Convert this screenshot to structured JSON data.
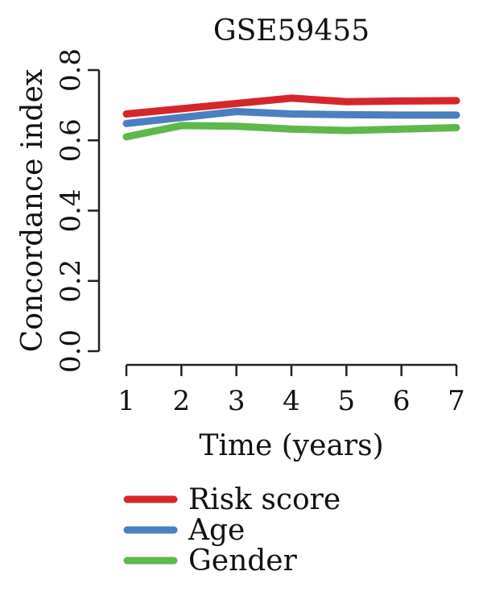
{
  "chart_data": {
    "type": "line",
    "title": "GSE59455",
    "xlabel": "Time (years)",
    "ylabel": "Concordance index",
    "x": [
      1,
      2,
      3,
      4,
      5,
      6,
      7
    ],
    "xlim": [
      1,
      7
    ],
    "ylim": [
      0.0,
      0.8
    ],
    "yticks": [
      "0.0",
      "0.2",
      "0.4",
      "0.6",
      "0.8"
    ],
    "xticks": [
      "1",
      "2",
      "3",
      "4",
      "5",
      "6",
      "7"
    ],
    "grid": false,
    "legend_position": "bottom",
    "series": [
      {
        "name": "Risk score",
        "color": "#d7262b",
        "values": [
          0.675,
          0.69,
          0.705,
          0.72,
          0.71,
          0.712,
          0.713
        ]
      },
      {
        "name": "Age",
        "color": "#4a7fc1",
        "values": [
          0.648,
          0.665,
          0.682,
          0.675,
          0.673,
          0.672,
          0.672
        ]
      },
      {
        "name": "Gender",
        "color": "#5fb84a",
        "values": [
          0.61,
          0.642,
          0.64,
          0.632,
          0.628,
          0.632,
          0.636
        ]
      }
    ]
  }
}
